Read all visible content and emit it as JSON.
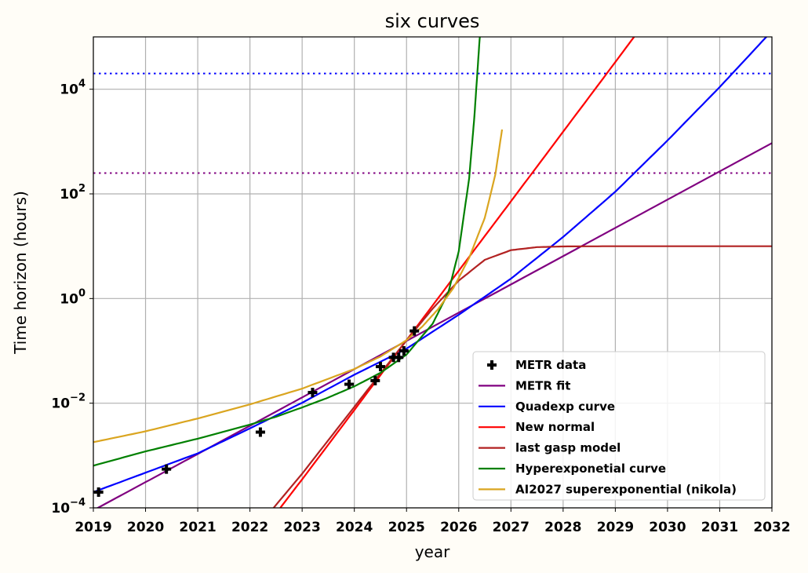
{
  "chart_data": {
    "type": "line",
    "title": "six curves",
    "xlabel": "year",
    "ylabel": "Time horizon (hours)",
    "xlim": [
      2019,
      2032
    ],
    "ylim": [
      0.0001,
      100000
    ],
    "yscale": "log",
    "grid": true,
    "legend_position": "lower-right",
    "x_ticks": [
      2019,
      2020,
      2021,
      2022,
      2023,
      2024,
      2025,
      2026,
      2027,
      2028,
      2029,
      2030,
      2031,
      2032
    ],
    "x_tick_labels": [
      "2019",
      "2020",
      "2021",
      "2022",
      "2023",
      "2024",
      "2025",
      "2026",
      "2027",
      "2028",
      "2029",
      "2030",
      "2031",
      "2032"
    ],
    "y_ticks": [
      {
        "value": 0.0001,
        "base": "10",
        "exp": "−4"
      },
      {
        "value": 0.01,
        "base": "10",
        "exp": "−2"
      },
      {
        "value": 1,
        "base": "10",
        "exp": "0"
      },
      {
        "value": 100,
        "base": "10",
        "exp": "2"
      },
      {
        "value": 10000,
        "base": "10",
        "exp": "4"
      }
    ],
    "hlines": [
      {
        "y": 20000,
        "color": "#0000ff",
        "style": "dotted"
      },
      {
        "y": 250,
        "color": "#800080",
        "style": "dotted"
      }
    ],
    "scatter": {
      "name": "METR data",
      "color": "#000000",
      "marker": "plus",
      "points": [
        {
          "x": 2019.1,
          "y": 0.0002
        },
        {
          "x": 2020.4,
          "y": 0.00055
        },
        {
          "x": 2022.2,
          "y": 0.0028
        },
        {
          "x": 2023.2,
          "y": 0.016
        },
        {
          "x": 2023.9,
          "y": 0.023
        },
        {
          "x": 2024.4,
          "y": 0.027
        },
        {
          "x": 2024.5,
          "y": 0.05
        },
        {
          "x": 2024.75,
          "y": 0.075
        },
        {
          "x": 2024.85,
          "y": 0.075
        },
        {
          "x": 2024.95,
          "y": 0.1
        },
        {
          "x": 2025.15,
          "y": 0.24
        }
      ]
    },
    "series": [
      {
        "name": "METR fit",
        "color": "#800080",
        "x": [
          2019,
          2020,
          2021,
          2022,
          2023,
          2024,
          2025,
          2026,
          2027,
          2028,
          2029,
          2030,
          2031,
          2032
        ],
        "y": [
          9e-05,
          0.00031,
          0.00107,
          0.0037,
          0.0129,
          0.0447,
          0.155,
          0.537,
          1.86,
          6.45,
          22.4,
          77.6,
          269,
          933
        ]
      },
      {
        "name": "Quadexp curve",
        "color": "#0000ff",
        "x": [
          2019,
          2020,
          2021,
          2022,
          2023,
          2024,
          2025,
          2026,
          2027,
          2028,
          2029,
          2030,
          2031,
          2032
        ],
        "y": [
          0.0002,
          0.00047,
          0.0011,
          0.0033,
          0.0102,
          0.035,
          0.11,
          0.49,
          2.4,
          15,
          110,
          1050,
          11000,
          130000
        ]
      },
      {
        "name": "New normal",
        "color": "#ff0000",
        "x": [
          2022.35,
          2023,
          2024,
          2025,
          2026,
          2027,
          2028,
          2029,
          2029.6
        ],
        "y": [
          5e-05,
          0.00035,
          0.0074,
          0.16,
          3.4,
          72,
          1540,
          33000,
          210000
        ]
      },
      {
        "name": "last gasp model",
        "color": "#b22222",
        "x": [
          2022.2,
          2023,
          2024,
          2024.5,
          2025,
          2025.5,
          2026,
          2026.5,
          2027,
          2027.5,
          2028,
          2029,
          2030,
          2032
        ],
        "y": [
          5e-05,
          0.00045,
          0.0085,
          0.037,
          0.16,
          0.64,
          2.2,
          5.5,
          8.4,
          9.6,
          9.9,
          10,
          10,
          10
        ]
      },
      {
        "name": "Hyperexponetial curve",
        "color": "#008000",
        "x": [
          2019,
          2020,
          2021,
          2022,
          2022.5,
          2023,
          2023.5,
          2024,
          2024.5,
          2025,
          2025.5,
          2025.8,
          2026,
          2026.2,
          2026.3,
          2026.4,
          2026.45
        ],
        "y": [
          0.00064,
          0.0012,
          0.0021,
          0.0039,
          0.0055,
          0.0083,
          0.0128,
          0.021,
          0.038,
          0.085,
          0.33,
          1.3,
          8,
          200,
          3000,
          90000,
          300000
        ]
      },
      {
        "name": "AI2027 superexponential (nikola)",
        "color": "#daa520",
        "x": [
          2019,
          2020,
          2021,
          2022,
          2023,
          2024,
          2024.5,
          2025,
          2025.3,
          2025.6,
          2025.9,
          2026.2,
          2026.5,
          2026.7,
          2026.83
        ],
        "y": [
          0.0018,
          0.0029,
          0.0051,
          0.0095,
          0.019,
          0.045,
          0.078,
          0.16,
          0.29,
          0.62,
          1.6,
          6,
          35,
          230,
          1700
        ]
      }
    ]
  }
}
